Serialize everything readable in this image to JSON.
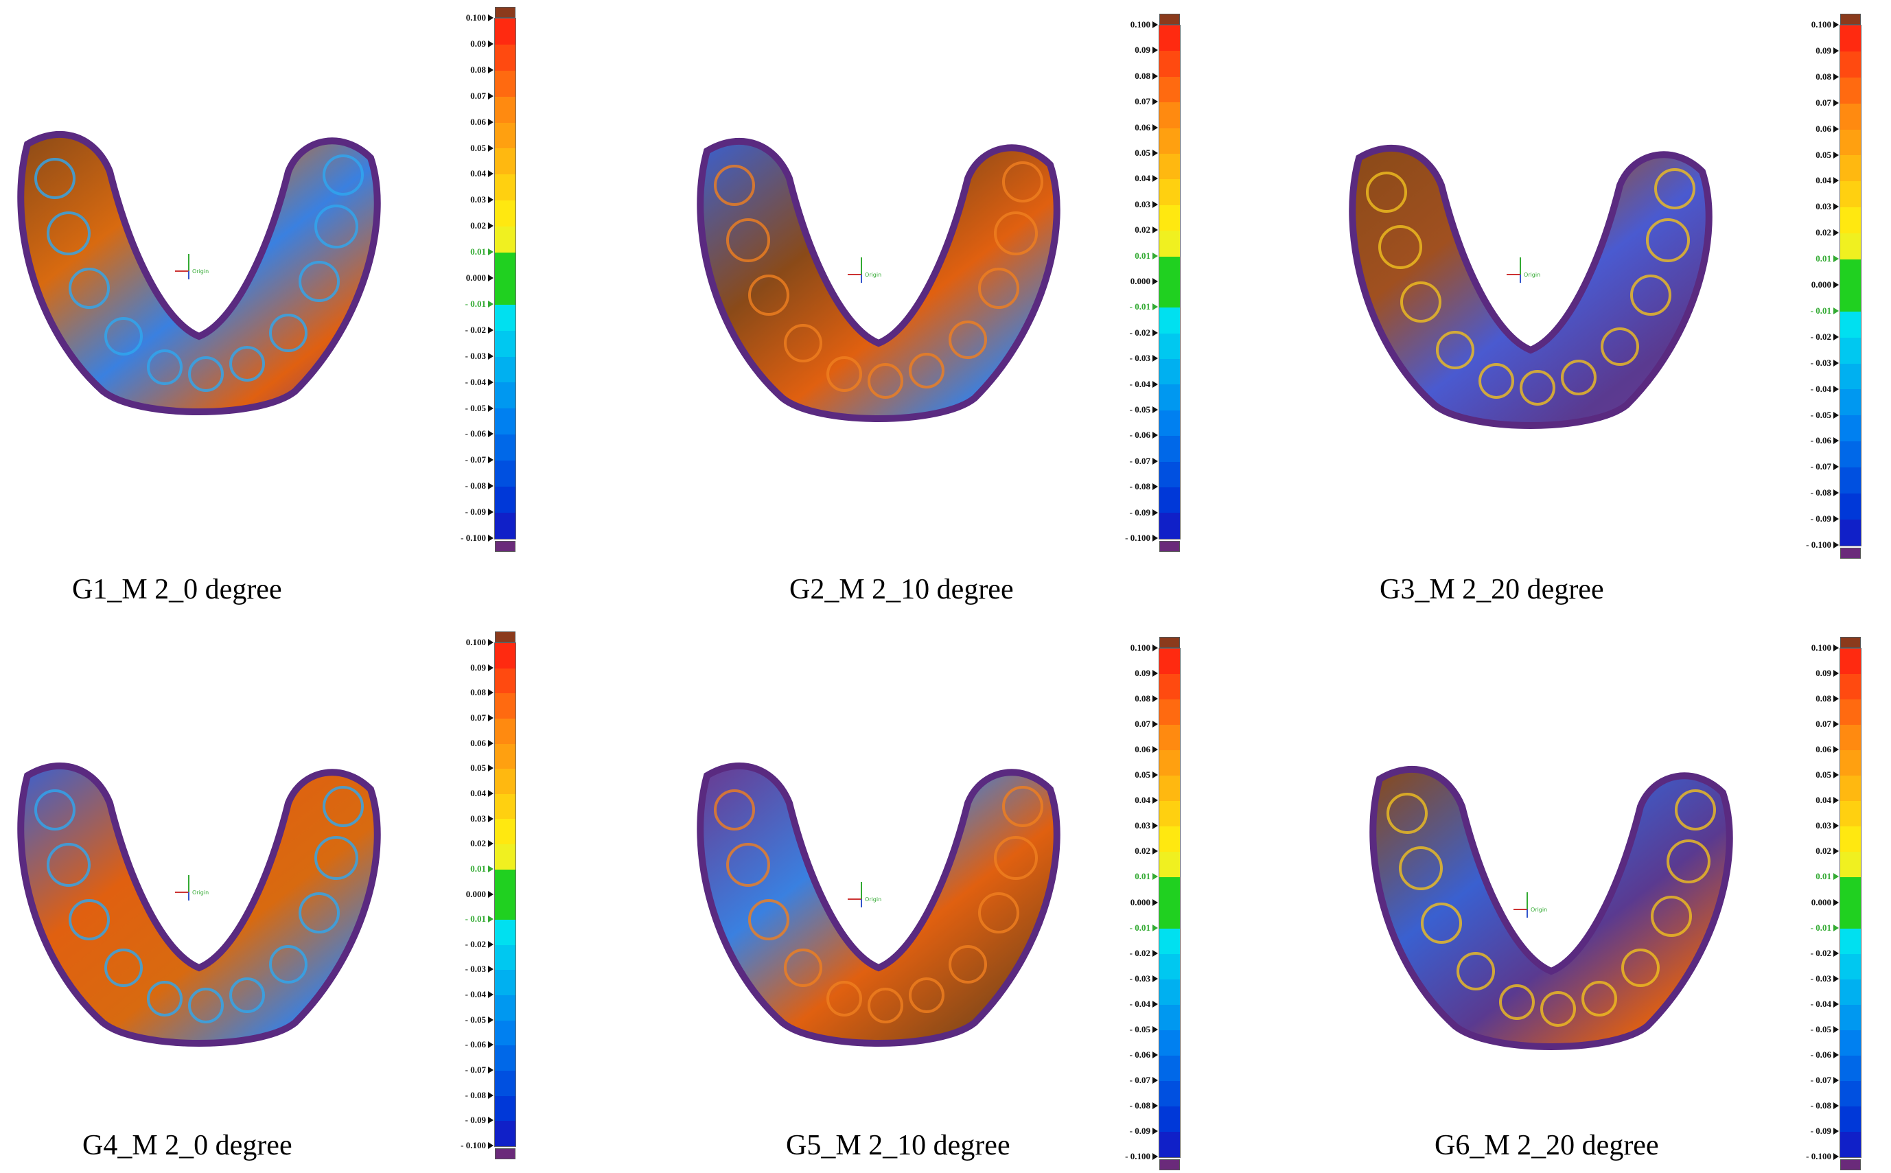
{
  "panels": [
    {
      "caption": "G1_M 2_0 degree"
    },
    {
      "caption": "G2_M 2_10 degree"
    },
    {
      "caption": "G3_M 2_20 degree"
    },
    {
      "caption": "G4_M 2_0 degree"
    },
    {
      "caption": "G5_M 2_10 degree"
    },
    {
      "caption": "G6_M 2_20 degree"
    }
  ],
  "scale": {
    "ticks": [
      "0.100",
      "0.09",
      "0.08",
      "0.07",
      "0.06",
      "0.05",
      "0.04",
      "0.03",
      "0.02",
      "0.01",
      "0.000",
      "- 0.01",
      "- 0.02",
      "- 0.03",
      "- 0.04",
      "- 0.05",
      "- 0.06",
      "- 0.07",
      "- 0.08",
      "- 0.09",
      "- 0.100"
    ],
    "green_ticks": [
      "0.01",
      "- 0.01"
    ],
    "colors": [
      "#ff2a10",
      "#ff4a10",
      "#ff6a10",
      "#ff8a10",
      "#ffa010",
      "#ffb810",
      "#ffd010",
      "#ffe810",
      "#f0f020",
      "#20d020",
      "#20d020",
      "#00e0f0",
      "#00c8f0",
      "#00b0f0",
      "#0098f0",
      "#0080f0",
      "#0068e8",
      "#0050e0",
      "#0038d8",
      "#1020c8"
    ],
    "top_cap_color": "#8b3a1c",
    "bottom_cap_color": "#6a2a7a"
  },
  "axis_label": "Origin"
}
